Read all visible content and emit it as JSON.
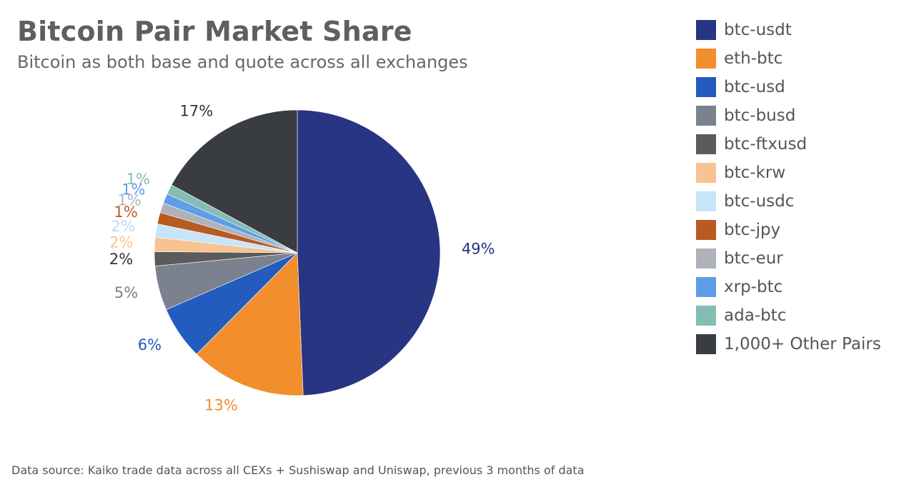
{
  "chart_data": {
    "type": "pie",
    "title": "Bitcoin Pair Market Share",
    "subtitle": "Bitcoin as both base and quote across all exchanges",
    "source": "Data source: Kaiko trade data across all CEXs + Sushiswap and Uniswap, previous 3 months of data",
    "legend_position": "right",
    "slices": [
      {
        "name": "btc-usdt",
        "value": 49,
        "label": "49%",
        "color": "#283583"
      },
      {
        "name": "eth-btc",
        "value": 13,
        "label": "13%",
        "color": "#f28e2b"
      },
      {
        "name": "btc-usd",
        "value": 6,
        "label": "6%",
        "color": "#245bbf"
      },
      {
        "name": "btc-busd",
        "value": 5,
        "label": "5%",
        "color": "#7b818e"
      },
      {
        "name": "btc-ftxusd",
        "value": 1.6,
        "label": "2%",
        "color": "#5b5b5b"
      },
      {
        "name": "btc-krw",
        "value": 1.6,
        "label": "2%",
        "color": "#f7c392"
      },
      {
        "name": "btc-usdc",
        "value": 1.5,
        "label": "2%",
        "color": "#c8e4f9"
      },
      {
        "name": "btc-jpy",
        "value": 1.3,
        "label": "1%",
        "color": "#b85a22"
      },
      {
        "name": "btc-eur",
        "value": 1.1,
        "label": "1%",
        "color": "#aeb2bb"
      },
      {
        "name": "xrp-btc",
        "value": 1.1,
        "label": "1%",
        "color": "#5e9de8"
      },
      {
        "name": "ada-btc",
        "value": 1.1,
        "label": "1%",
        "color": "#85bdb5"
      },
      {
        "name": "1,000+ Other Pairs",
        "value": 17,
        "label": "17%",
        "color": "#393d42"
      }
    ]
  }
}
